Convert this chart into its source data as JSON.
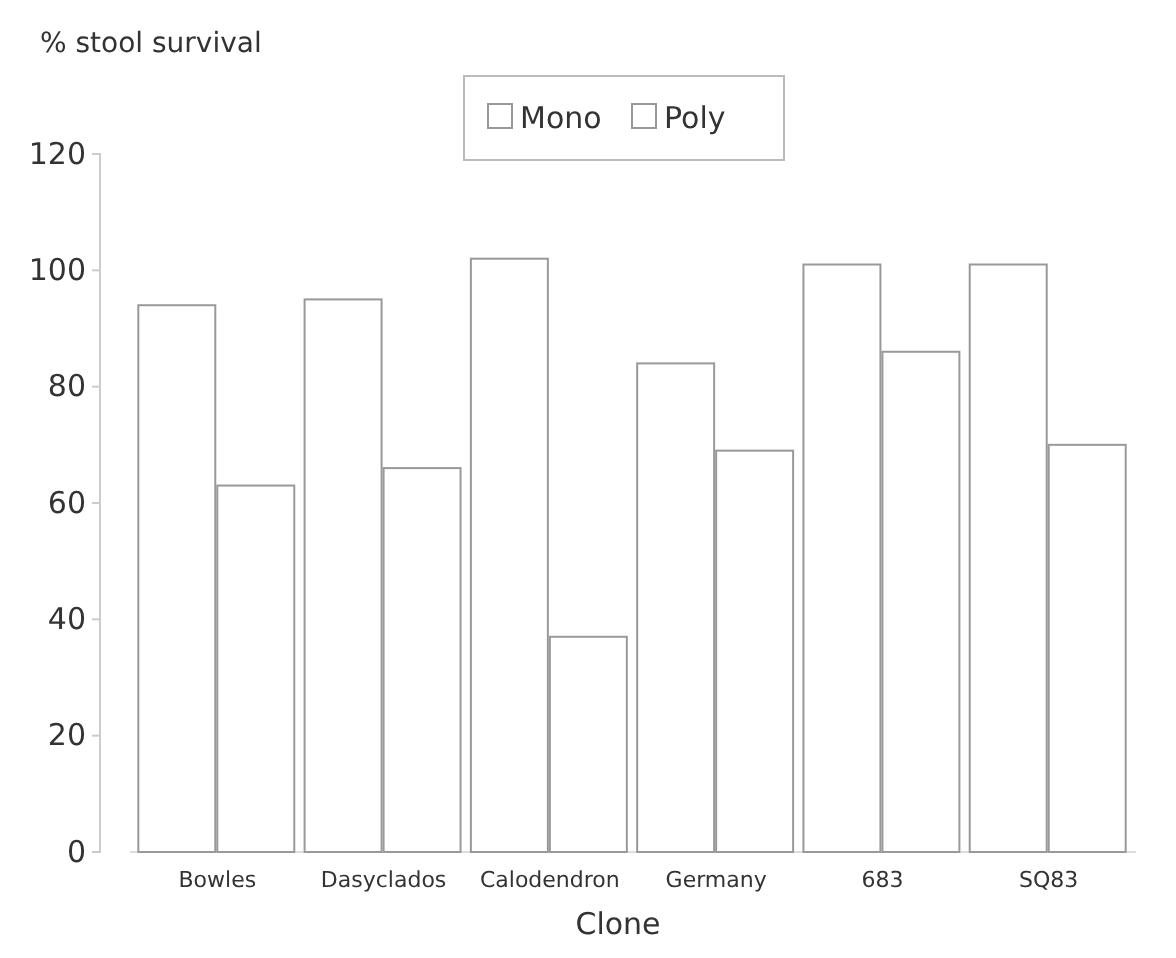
{
  "chart_data": {
    "type": "bar",
    "ylabel": "% stool survival",
    "xlabel": "Clone",
    "categories": [
      "Bowles",
      "Dasyclados",
      "Calodendron",
      "Germany",
      "683",
      "SQ83"
    ],
    "series": [
      {
        "name": "Mono",
        "color": "#ffffff",
        "values": [
          94,
          95,
          102,
          84,
          101,
          101
        ]
      },
      {
        "name": "Poly",
        "color": "#ffffff",
        "values": [
          63,
          66,
          37,
          69,
          86,
          70
        ]
      }
    ],
    "ylim": [
      0,
      120
    ],
    "yticks": [
      0,
      20,
      40,
      60,
      80,
      100,
      120
    ],
    "grid": false,
    "legend": "top"
  }
}
